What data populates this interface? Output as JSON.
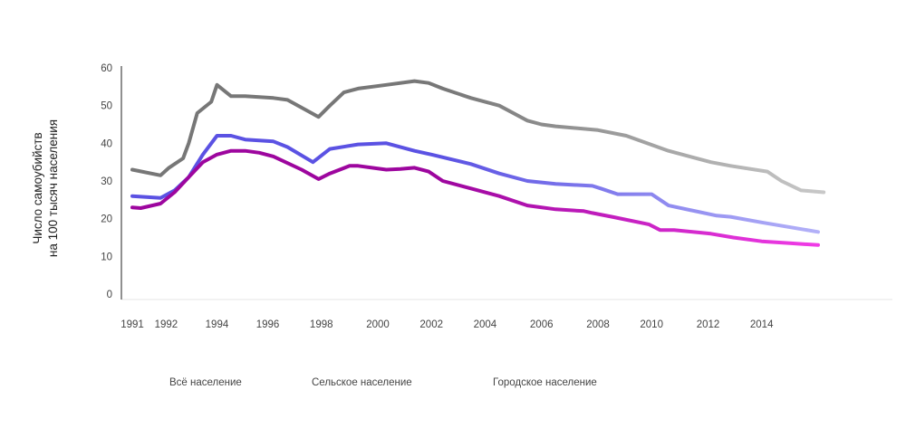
{
  "chart_data": {
    "type": "line",
    "ylabel_lines": [
      "Число самоубийств",
      "на 100 тысяч населения"
    ],
    "ylim": [
      0,
      60
    ],
    "yticks": [
      0,
      10,
      20,
      30,
      40,
      50,
      60
    ],
    "xlim": [
      1991,
      2016
    ],
    "xtick_labels": [
      "1991",
      "1992",
      "1994",
      "1996",
      "1998",
      "2000",
      "2002",
      "2004",
      "2006",
      "2008",
      "2010",
      "2012",
      "2014"
    ],
    "xtick_values": [
      1991,
      1992.2,
      1994,
      1995.8,
      1997.7,
      1999.7,
      2001.6,
      2003.5,
      2005.5,
      2007.5,
      2009.4,
      2011.4,
      2013.3
    ],
    "grid": false,
    "legend_position": "bottom",
    "series": [
      {
        "name": "Всё население",
        "color": "#5b52e3",
        "color_end": "#b3b1f8",
        "x": [
          1991,
          1992,
          1992.5,
          1993,
          1993.5,
          1994,
          1994.5,
          1995,
          1996,
          1996.5,
          1997.4,
          1998,
          1999,
          2000,
          2001,
          2001.6,
          2003,
          2004,
          2005,
          2006,
          2007.3,
          2007.6,
          2008.2,
          2008.4,
          2009.4,
          2010,
          2011.7,
          2012.2,
          2013.3,
          2015.3
        ],
        "y": [
          26,
          25.5,
          27.5,
          31,
          37,
          42,
          42,
          41,
          40.5,
          39,
          35,
          38.5,
          39.7,
          40,
          38,
          37,
          34.5,
          32,
          30,
          29.2,
          28.7,
          28,
          26.5,
          26.5,
          26.5,
          23.5,
          20.8,
          20.5,
          19,
          16.5
        ]
      },
      {
        "name": "Сельское население",
        "color": "#777777",
        "color_end": "#c8c8c8",
        "x": [
          1991,
          1992,
          1992.3,
          1992.8,
          1993,
          1993.3,
          1993.8,
          1994,
          1994.5,
          1995,
          1996,
          1996.5,
          1997.6,
          1998,
          1998.5,
          1999,
          2000,
          2001,
          2001.5,
          2002,
          2003,
          2004,
          2005,
          2005.5,
          2006,
          2007.5,
          2008.5,
          2010,
          2011.5,
          2012.2,
          2013.5,
          2014,
          2014.7,
          2015.5
        ],
        "y": [
          33,
          31.5,
          33.5,
          36,
          40,
          48,
          51,
          55.5,
          52.5,
          52.5,
          52,
          51.5,
          47,
          50,
          53.5,
          54.5,
          55.5,
          56.5,
          56,
          54.5,
          52,
          50,
          46,
          45,
          44.5,
          43.5,
          42,
          38,
          35,
          34,
          32.5,
          30,
          27.5,
          27
        ]
      },
      {
        "name": "Городское население",
        "color": "#9d069e",
        "color_end": "#f03ce6",
        "x": [
          1991,
          1991.3,
          1992,
          1992.5,
          1993,
          1993.5,
          1994,
          1994.5,
          1995,
          1995.5,
          1996,
          1997,
          1997.6,
          1998,
          1998.7,
          1999,
          2000,
          2000.5,
          2001,
          2001.5,
          2002,
          2003,
          2004,
          2005,
          2006,
          2007,
          2007.3,
          2008,
          2009.3,
          2009.7,
          2010.2,
          2011.5,
          2012.3,
          2013.3,
          2014.3,
          2015.3
        ],
        "y": [
          23,
          22.8,
          24,
          27,
          31,
          35,
          37,
          38,
          38,
          37.5,
          36.5,
          33,
          30.5,
          32,
          34,
          34,
          33,
          33.2,
          33.5,
          32.5,
          30,
          28,
          26,
          23.5,
          22.5,
          22,
          21.5,
          20.5,
          18.5,
          17,
          17,
          16,
          15,
          14,
          13.5,
          13
        ]
      }
    ]
  }
}
